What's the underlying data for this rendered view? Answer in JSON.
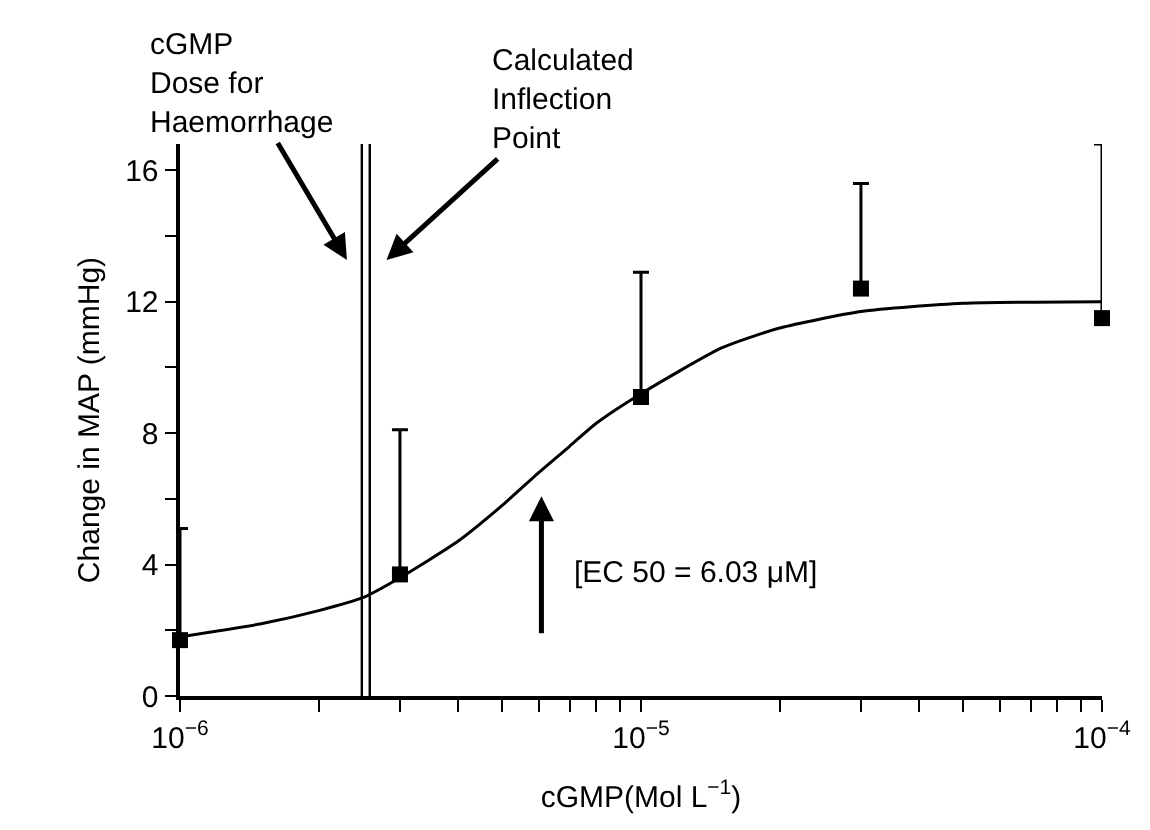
{
  "chart_data": {
    "type": "scatter",
    "xlabel": "cGMP(Mol L$^{−1}$)",
    "ylabel": "Change in MAP (mmHg)",
    "log": "x",
    "grid": false,
    "xlim": [
      1e-06,
      0.0001
    ],
    "xticks": [
      {
        "value": 1e-06,
        "label": "10$^{−6}$"
      },
      {
        "value": 2e-06,
        "label": null
      },
      {
        "value": 3e-06,
        "label": null
      },
      {
        "value": 4e-06,
        "label": null
      },
      {
        "value": 5e-06,
        "label": null
      },
      {
        "value": 6e-06,
        "label": null
      },
      {
        "value": 7e-06,
        "label": null
      },
      {
        "value": 8e-06,
        "label": null
      },
      {
        "value": 9e-06,
        "label": null
      },
      {
        "value": 1e-05,
        "label": "10$^{−5}$"
      },
      {
        "value": 2e-05,
        "label": null
      },
      {
        "value": 3e-05,
        "label": null
      },
      {
        "value": 4e-05,
        "label": null
      },
      {
        "value": 5e-05,
        "label": null
      },
      {
        "value": 6e-05,
        "label": null
      },
      {
        "value": 7e-05,
        "label": null
      },
      {
        "value": 8e-05,
        "label": null
      },
      {
        "value": 9e-05,
        "label": null
      },
      {
        "value": 0.0001,
        "label": "10$^{−4}$"
      }
    ],
    "ylim": [
      0,
      16.8
    ],
    "yticks": [
      0,
      {
        "value": 2,
        "label": null
      },
      4,
      {
        "value": 6,
        "label": null
      },
      8,
      {
        "value": 10,
        "label": null
      },
      12,
      {
        "value": 14,
        "label": null
      },
      16
    ],
    "series": [
      {
        "color": "#000000",
        "marker": "square",
        "x": [
          1e-06,
          3e-06,
          1e-05,
          3e-05,
          0.0001
        ],
        "values": [
          1.7,
          3.7,
          9.1,
          12.4,
          11.5
        ],
        "errors": [
          [
            1.7,
            5.1
          ],
          [
            3.7,
            8.1
          ],
          [
            9.1,
            12.9
          ],
          [
            12.4,
            15.6
          ],
          [
            11.5,
            16.8
          ]
        ]
      },
      {
        "type": "line",
        "color": "#000000",
        "line_style": "solid",
        "x": [
          1e-06,
          1.5e-06,
          2e-06,
          2.5e-06,
          3e-06,
          4e-06,
          5e-06,
          6e-06,
          7e-06,
          8e-06,
          1e-05,
          1.5e-05,
          2e-05,
          3e-05,
          5e-05,
          0.0001
        ],
        "values": [
          1.8,
          2.2,
          2.6,
          3.0,
          3.6,
          4.7,
          5.8,
          6.8,
          7.6,
          8.3,
          9.2,
          10.6,
          11.2,
          11.7,
          11.95,
          12.0
        ]
      }
    ],
    "ref_lines": [
      {
        "axis": "x",
        "value": 2.48e-06,
        "color": "#000000"
      },
      {
        "axis": "x",
        "value": 2.58e-06,
        "color": "#000000"
      }
    ],
    "annotations": [
      "cGMP\nDose for\nHaemorrhage",
      "Calculated\nInflection\nPoint",
      "[EC 50 = 6.03 μM]"
    ]
  }
}
